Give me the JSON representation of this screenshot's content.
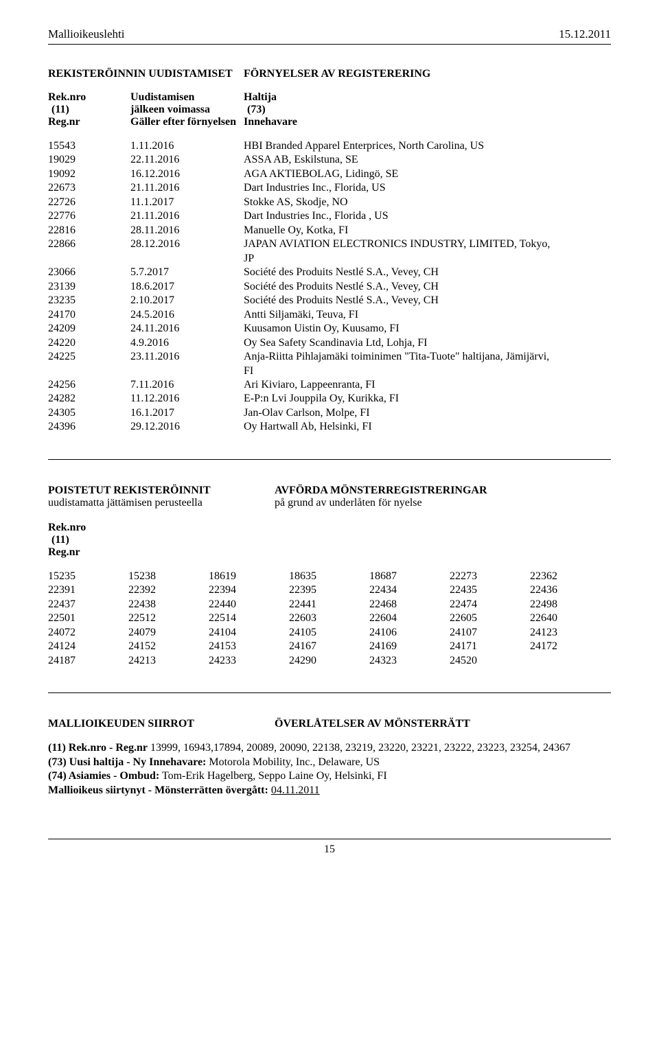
{
  "header": {
    "title": "Mallioikeuslehti",
    "date": "15.12.2011"
  },
  "page_number": "15",
  "section1": {
    "heading_left": "REKISTERÖINNIN UUDISTAMISET",
    "heading_right": "FÖRNYELSER AV REGISTERERING",
    "colhead": {
      "c1a": "Rek.nro",
      "c1b": "(11)",
      "c1c": "Reg.nr",
      "c2a": "Uudistamisen",
      "c2b": "jälkeen voimassa",
      "c2c": "Gäller efter förnyelsen",
      "c3a": "Haltija",
      "c3b": "(73)",
      "c3c": "Innehavare"
    },
    "rows": [
      {
        "reg": "15543",
        "date": "1.11.2016",
        "holder": "HBI Branded Apparel Enterprices, North Carolina, US"
      },
      {
        "reg": "19029",
        "date": "22.11.2016",
        "holder": "ASSA AB, Eskilstuna, SE"
      },
      {
        "reg": "19092",
        "date": "16.12.2016",
        "holder": "AGA AKTIEBOLAG, Lidingö, SE"
      },
      {
        "reg": "22673",
        "date": "21.11.2016",
        "holder": "Dart Industries Inc., Florida, US"
      },
      {
        "reg": "22726",
        "date": "11.1.2017",
        "holder": "Stokke AS, Skodje, NO"
      },
      {
        "reg": "22776",
        "date": "21.11.2016",
        "holder": "Dart Industries Inc., Florida , US"
      },
      {
        "reg": "22816",
        "date": "28.11.2016",
        "holder": "Manuelle Oy, Kotka, FI"
      },
      {
        "reg": "22866",
        "date": "28.12.2016",
        "holder": "JAPAN AVIATION ELECTRONICS INDUSTRY, LIMITED, Tokyo,",
        "cont": "JP"
      },
      {
        "reg": "23066",
        "date": "5.7.2017",
        "holder": "Société des Produits Nestlé S.A., Vevey, CH"
      },
      {
        "reg": "23139",
        "date": "18.6.2017",
        "holder": "Société des Produits Nestlé S.A., Vevey, CH"
      },
      {
        "reg": "23235",
        "date": "2.10.2017",
        "holder": "Société des Produits Nestlé S.A., Vevey, CH"
      },
      {
        "reg": "24170",
        "date": "24.5.2016",
        "holder": "Antti Siljamäki, Teuva, FI"
      },
      {
        "reg": "24209",
        "date": "24.11.2016",
        "holder": "Kuusamon Uistin Oy, Kuusamo, FI"
      },
      {
        "reg": "24220",
        "date": "4.9.2016",
        "holder": "Oy Sea Safety Scandinavia Ltd, Lohja, FI"
      },
      {
        "reg": "24225",
        "date": "23.11.2016",
        "holder": "Anja-Riitta Pihlajamäki toiminimen \"Tita-Tuote\" haltijana, Jämijärvi,",
        "cont": "FI"
      },
      {
        "reg": "24256",
        "date": "7.11.2016",
        "holder": "Ari Kiviaro, Lappeenranta, FI"
      },
      {
        "reg": "24282",
        "date": "11.12.2016",
        "holder": "E-P:n Lvi Jouppila Oy, Kurikka, FI"
      },
      {
        "reg": "24305",
        "date": "16.1.2017",
        "holder": "Jan-Olav Carlson, Molpe, FI"
      },
      {
        "reg": "24396",
        "date": "29.12.2016",
        "holder": "Oy Hartwall Ab, Helsinki, FI"
      }
    ]
  },
  "section2": {
    "heading_left_bold": "POISTETUT REKISTERÖINNIT",
    "heading_left_sub": "uudistamatta jättämisen perusteella",
    "heading_right_bold": "AVFÖRDA MÖNSTERREGISTRERINGAR",
    "heading_right_sub": "på grund av underlåten för nyelse",
    "reknro_lines": [
      "Rek.nro",
      "(11)",
      "Reg.nr"
    ],
    "grid": [
      [
        "15235",
        "15238",
        "18619",
        "18635",
        "18687",
        "22273",
        "22362"
      ],
      [
        "22391",
        "22392",
        "22394",
        "22395",
        "22434",
        "22435",
        "22436"
      ],
      [
        "22437",
        "22438",
        "22440",
        "22441",
        "22468",
        "22474",
        "22498"
      ],
      [
        "22501",
        "22512",
        "22514",
        "22603",
        "22604",
        "22605",
        "22640"
      ],
      [
        "24072",
        "24079",
        "24104",
        "24105",
        "24106",
        "24107",
        "24123"
      ],
      [
        "24124",
        "24152",
        "24153",
        "24167",
        "24169",
        "24171",
        "24172"
      ],
      [
        "24187",
        "24213",
        "24233",
        "24290",
        "24323",
        "24520",
        ""
      ]
    ]
  },
  "section3": {
    "heading_left": "MALLIOIKEUDEN SIIRROT",
    "heading_right": "ÖVERLÅTELSER AV MÖNSTERRÄTT",
    "line1_bold": "(11) Rek.nro - Reg.nr",
    "line1_rest": " 13999, 16943,17894, 20089, 20090, 22138, 23219, 23220, 23221, 23222, 23223, 23254, 24367",
    "line2_bold": "(73) Uusi haltija - Ny Innehavare:",
    "line2_rest": " Motorola Mobility, Inc., Delaware, US",
    "line3_bold": "(74) Asiamies - Ombud:",
    "line3_rest": " Tom-Erik Hagelberg, Seppo Laine Oy, Helsinki, FI",
    "line4_bold": "Mallioikeus siirtynyt - Mönsterrätten övergått:",
    "line4_date": "04.11.2011"
  }
}
